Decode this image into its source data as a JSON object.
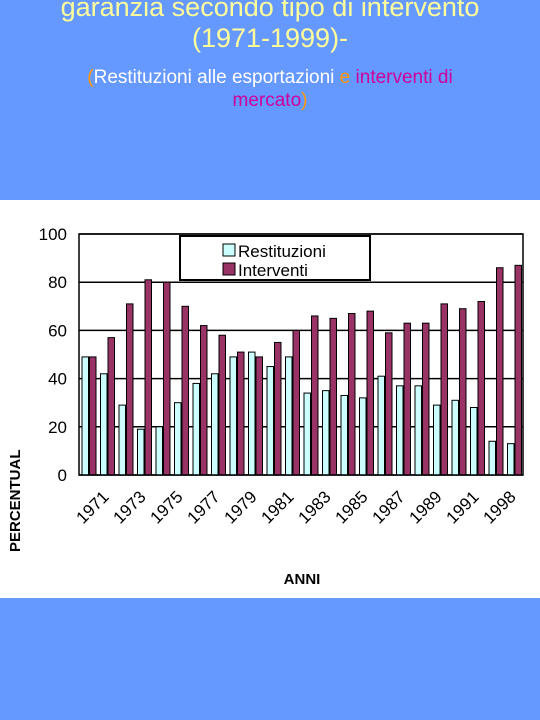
{
  "slide": {
    "title_line1": "garanzia secondo tipo di intervento",
    "title_line2": "(1971-1999)-",
    "subtitle": {
      "open_paren": "(",
      "part1": "Restituzioni alle esportazioni",
      "conj": " e ",
      "part2_a": "interventi di",
      "part2_b": "mercato",
      "close_paren": ")"
    }
  },
  "colors": {
    "background": "#6699ff",
    "title": "#ffff99",
    "restituzioni": "#ccffff",
    "interventi": "#993366"
  },
  "chart_data": {
    "type": "bar",
    "ylabel": "PERCENTUAL",
    "xlabel": "ANNI",
    "ylim": [
      0,
      100
    ],
    "yticks": [
      "0",
      "20",
      "40",
      "60",
      "80",
      "100"
    ],
    "grid": true,
    "legend_position": "top-center",
    "x_tick_labels": [
      "1971",
      "1973",
      "1975",
      "1977",
      "1979",
      "1981",
      "1983",
      "1985",
      "1987",
      "1989",
      "1991",
      "1998"
    ],
    "series": [
      {
        "name": "Restituzioni",
        "values": [
          49,
          42,
          29,
          19,
          20,
          30,
          38,
          42,
          49,
          51,
          45,
          49,
          34,
          35,
          33,
          32,
          41,
          37,
          37,
          29,
          31,
          28,
          14,
          13
        ]
      },
      {
        "name": "Interventi",
        "values": [
          49,
          57,
          71,
          81,
          80,
          70,
          62,
          58,
          51,
          49,
          55,
          60,
          66,
          65,
          67,
          68,
          59,
          63,
          63,
          71,
          69,
          72,
          86,
          87
        ]
      }
    ]
  }
}
